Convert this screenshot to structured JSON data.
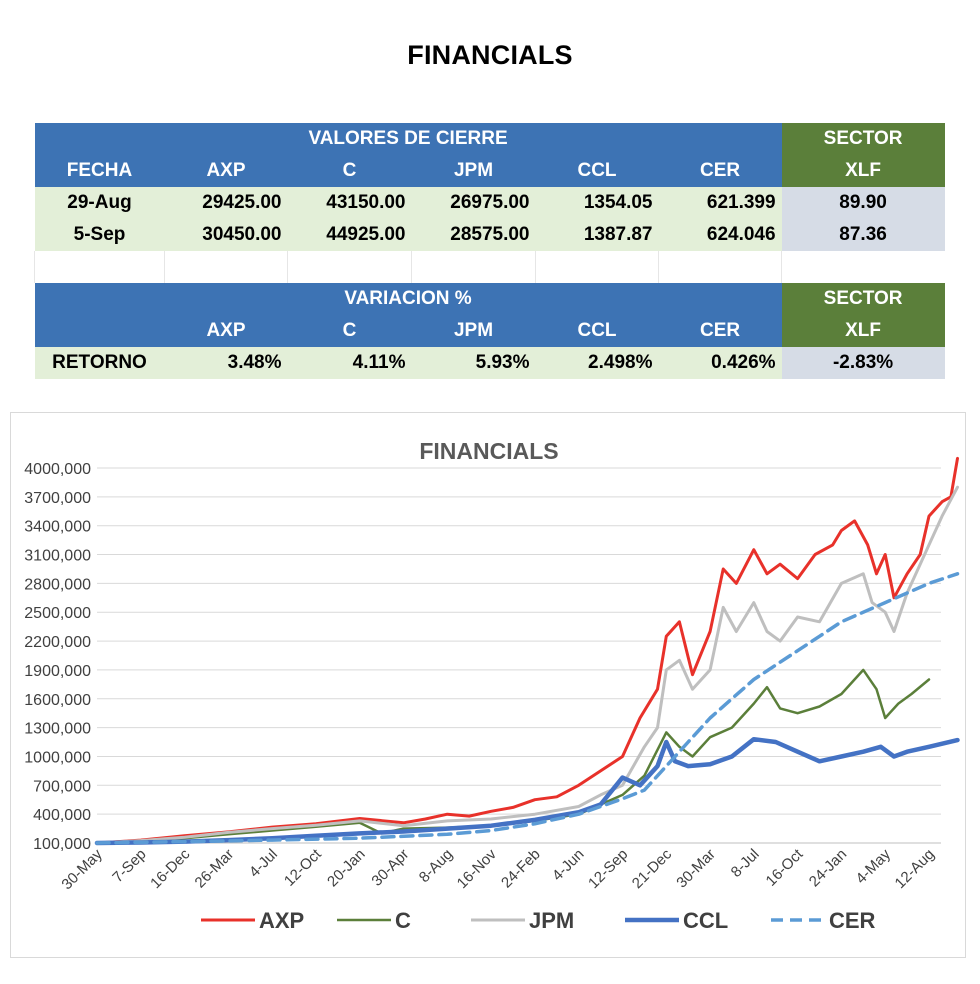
{
  "page_title": "FINANCIALS",
  "table": {
    "top_group_label": "VALORES DE CIERRE",
    "sector_label": "SECTOR",
    "columns": [
      "FECHA",
      "AXP",
      "C",
      "JPM",
      "CCL",
      "CER",
      "XLF"
    ],
    "rows": [
      [
        "29-Aug",
        "29425.00",
        "43150.00",
        "26975.00",
        "1354.05",
        "621.399",
        "89.90"
      ],
      [
        "5-Sep",
        "30450.00",
        "44925.00",
        "28575.00",
        "1387.87",
        "624.046",
        "87.36"
      ]
    ],
    "bottom_group_label": "VARIACION %",
    "bottom_columns": [
      "",
      "AXP",
      "C",
      "JPM",
      "CCL",
      "CER",
      "XLF"
    ],
    "return_row": [
      "RETORNO",
      "3.48%",
      "4.11%",
      "5.93%",
      "2.498%",
      "0.426%",
      "-2.83%"
    ]
  },
  "colors": {
    "header_blue": "#3d73b4",
    "header_green": "#5b7f3a",
    "row_green_light": "#e3efd8",
    "row_grey_light": "#d6dce6"
  },
  "chart_data": {
    "type": "line",
    "title": "FINANCIALS",
    "ylim": [
      100000,
      4000000
    ],
    "yticks": [
      100000,
      400000,
      700000,
      1000000,
      1300000,
      1600000,
      1900000,
      2200000,
      2500000,
      2800000,
      3100000,
      3400000,
      3700000,
      4000000
    ],
    "ytick_labels": [
      "100,000",
      "400,000",
      "700,000",
      "1000,000",
      "1300,000",
      "1600,000",
      "1900,000",
      "2200,000",
      "2500,000",
      "2800,000",
      "3100,000",
      "3400,000",
      "3700,000",
      "4000,000"
    ],
    "x_labels": [
      "30-May",
      "7-Sep",
      "16-Dec",
      "26-Mar",
      "4-Jul",
      "12-Oct",
      "20-Jan",
      "30-Apr",
      "8-Aug",
      "16-Nov",
      "24-Feb",
      "4-Jun",
      "12-Sep",
      "21-Dec",
      "30-Mar",
      "8-Jul",
      "16-Oct",
      "24-Jan",
      "4-May",
      "12-Aug"
    ],
    "legend_position": "bottom",
    "grid": true,
    "series": [
      {
        "name": "AXP",
        "color": "#e8312a",
        "dash": false,
        "width": 3,
        "x": [
          0,
          1,
          2,
          3,
          4,
          5,
          6,
          7,
          7.5,
          8,
          8.5,
          9,
          9.5,
          10,
          10.5,
          11,
          11.5,
          12,
          12.4,
          12.8,
          13,
          13.3,
          13.6,
          14,
          14.3,
          14.6,
          15,
          15.3,
          15.6,
          16,
          16.4,
          16.8,
          17,
          17.3,
          17.6,
          17.8,
          18,
          18.2,
          18.5,
          18.8,
          19,
          19.3,
          19.5,
          19.65
        ],
        "y": [
          100000,
          130000,
          175000,
          215000,
          265000,
          300000,
          355000,
          310000,
          350000,
          400000,
          380000,
          430000,
          470000,
          550000,
          580000,
          700000,
          850000,
          1000000,
          1400000,
          1700000,
          2250000,
          2400000,
          1850000,
          2300000,
          2950000,
          2800000,
          3150000,
          2900000,
          3000000,
          2850000,
          3100000,
          3200000,
          3350000,
          3450000,
          3200000,
          2900000,
          3100000,
          2650000,
          2900000,
          3100000,
          3500000,
          3650000,
          3700000,
          4100000
        ]
      },
      {
        "name": "C",
        "color": "#5b7f3a",
        "dash": false,
        "width": 2.5,
        "x": [
          0,
          1,
          2,
          3,
          4,
          5,
          6,
          6.5,
          7,
          8,
          9,
          10,
          11,
          12,
          12.5,
          13,
          13.3,
          13.6,
          14,
          14.5,
          15,
          15.3,
          15.6,
          16,
          16.5,
          17,
          17.5,
          17.8,
          18,
          18.3,
          18.6,
          19
        ],
        "y": [
          100000,
          120000,
          150000,
          190000,
          230000,
          270000,
          310000,
          200000,
          250000,
          260000,
          280000,
          330000,
          400000,
          600000,
          800000,
          1250000,
          1100000,
          1000000,
          1200000,
          1300000,
          1550000,
          1720000,
          1500000,
          1450000,
          1520000,
          1650000,
          1900000,
          1700000,
          1400000,
          1550000,
          1650000,
          1800000
        ]
      },
      {
        "name": "JPM",
        "color": "#bfbfbf",
        "dash": false,
        "width": 3,
        "x": [
          0,
          1,
          2,
          3,
          4,
          5,
          6,
          7,
          8,
          9,
          10,
          11,
          11.5,
          12,
          12.5,
          12.8,
          13,
          13.3,
          13.6,
          14,
          14.3,
          14.6,
          15,
          15.3,
          15.6,
          16,
          16.5,
          17,
          17.5,
          17.7,
          18,
          18.2,
          18.5,
          18.8,
          19,
          19.3,
          19.65
        ],
        "y": [
          100000,
          125000,
          160000,
          210000,
          250000,
          285000,
          330000,
          280000,
          330000,
          350000,
          400000,
          480000,
          600000,
          700000,
          1100000,
          1300000,
          1900000,
          2000000,
          1700000,
          1900000,
          2550000,
          2300000,
          2600000,
          2300000,
          2200000,
          2450000,
          2400000,
          2800000,
          2900000,
          2600000,
          2500000,
          2300000,
          2700000,
          3000000,
          3200000,
          3500000,
          3800000
        ]
      },
      {
        "name": "CCL",
        "color": "#4472c4",
        "dash": false,
        "width": 4.5,
        "x": [
          0,
          1,
          2,
          3,
          4,
          5,
          6,
          7,
          8,
          9,
          10,
          11,
          11.5,
          12,
          12.4,
          12.8,
          13,
          13.2,
          13.5,
          14,
          14.5,
          15,
          15.5,
          16,
          16.5,
          17,
          17.5,
          17.9,
          18.2,
          18.5,
          19,
          19.65
        ],
        "y": [
          100000,
          105000,
          115000,
          130000,
          150000,
          175000,
          200000,
          220000,
          250000,
          280000,
          340000,
          420000,
          500000,
          780000,
          700000,
          900000,
          1150000,
          950000,
          900000,
          920000,
          1000000,
          1180000,
          1150000,
          1050000,
          950000,
          1000000,
          1050000,
          1100000,
          1000000,
          1050000,
          1100000,
          1170000
        ]
      },
      {
        "name": "CER",
        "color": "#5b9bd5",
        "dash": true,
        "width": 3.5,
        "x": [
          0,
          2,
          4,
          6,
          8,
          9,
          10,
          11,
          11.5,
          12,
          12.5,
          13,
          13.5,
          14,
          14.5,
          15,
          15.5,
          16,
          16.5,
          17,
          17.5,
          18,
          18.5,
          19,
          19.65
        ],
        "y": [
          100000,
          115000,
          130000,
          150000,
          190000,
          230000,
          300000,
          400000,
          480000,
          560000,
          650000,
          900000,
          1150000,
          1400000,
          1600000,
          1800000,
          1950000,
          2100000,
          2250000,
          2400000,
          2500000,
          2600000,
          2700000,
          2800000,
          2900000
        ]
      }
    ]
  }
}
